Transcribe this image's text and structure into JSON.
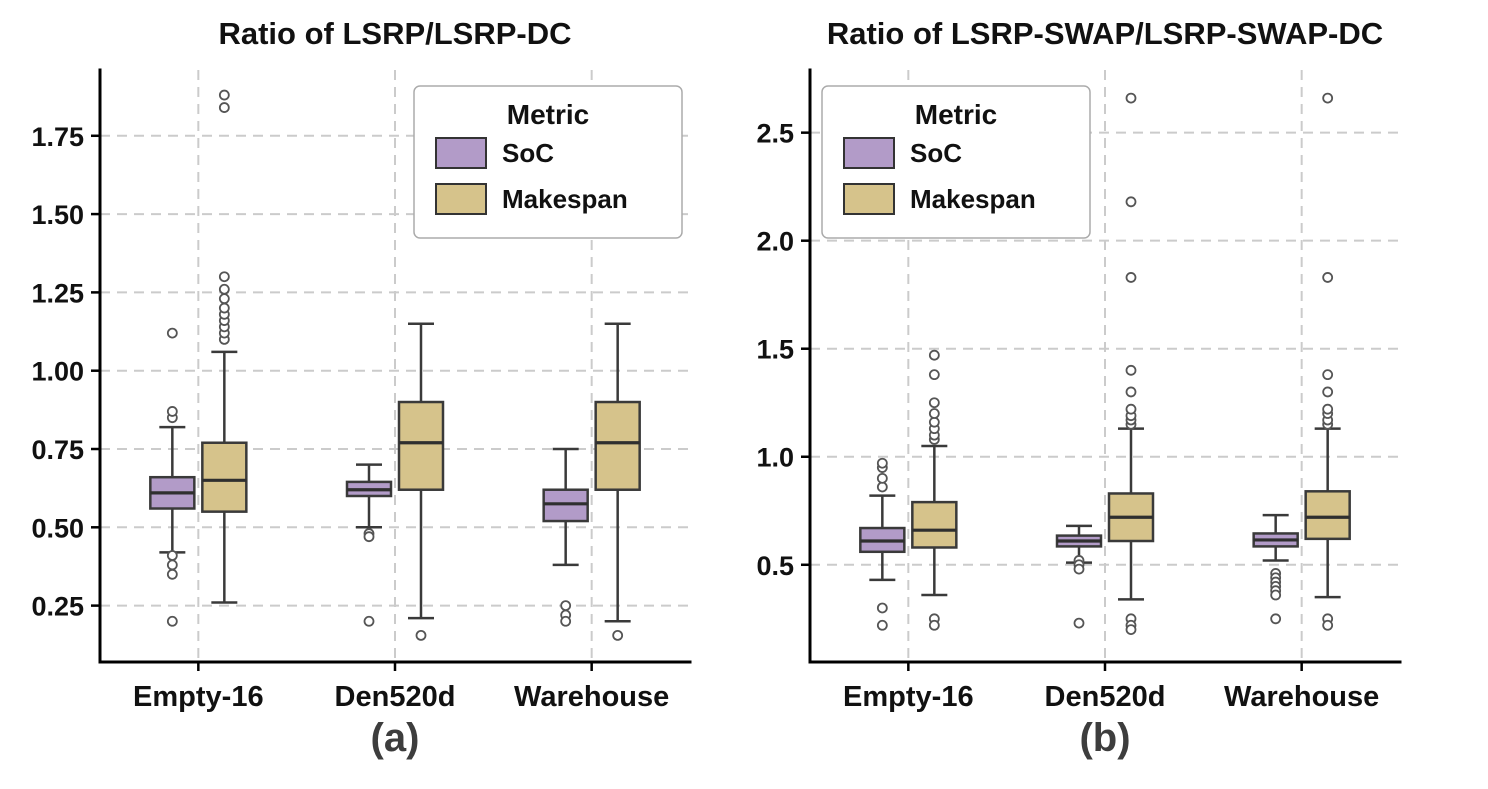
{
  "figure": {
    "background": "#ffffff",
    "edge_color": "#3a3a3a",
    "grid_color": "#cbcbcb",
    "outlier_style": "open-circle"
  },
  "chart_data": [
    {
      "type": "boxplot",
      "title": "Ratio of LSRP/LSRP-DC",
      "subplot_label": "(a)",
      "categories": [
        "Empty-16",
        "Den520d",
        "Warehouse"
      ],
      "ylim": [
        0.07,
        1.96
      ],
      "yticks": [
        0.25,
        0.5,
        0.75,
        1.0,
        1.25,
        1.5,
        1.75
      ],
      "ytick_labels": [
        "0.25",
        "0.50",
        "0.75",
        "1.00",
        "1.25",
        "1.50",
        "1.75"
      ],
      "grid": "both-dashed",
      "legend": {
        "title": "Metric",
        "loc": "upper right",
        "entries": [
          "SoC",
          "Makespan"
        ]
      },
      "series": [
        {
          "name": "SoC",
          "color": "#b29bc8",
          "boxes": [
            {
              "q1": 0.56,
              "median": 0.61,
              "q3": 0.66,
              "lo": 0.42,
              "hi": 0.82,
              "outliers": [
                0.85,
                0.87,
                1.12,
                0.41,
                0.38,
                0.35,
                0.2
              ]
            },
            {
              "q1": 0.6,
              "median": 0.62,
              "q3": 0.645,
              "lo": 0.5,
              "hi": 0.7,
              "outliers": [
                0.48,
                0.47,
                0.2
              ]
            },
            {
              "q1": 0.52,
              "median": 0.575,
              "q3": 0.62,
              "lo": 0.38,
              "hi": 0.75,
              "outliers": [
                0.25,
                0.22,
                0.2
              ]
            }
          ]
        },
        {
          "name": "Makespan",
          "color": "#d6c38b",
          "boxes": [
            {
              "q1": 0.55,
              "median": 0.65,
              "q3": 0.77,
              "lo": 0.26,
              "hi": 1.06,
              "outliers": [
                1.1,
                1.12,
                1.14,
                1.16,
                1.18,
                1.2,
                1.23,
                1.26,
                1.3,
                1.84,
                1.88
              ]
            },
            {
              "q1": 0.62,
              "median": 0.77,
              "q3": 0.9,
              "lo": 0.21,
              "hi": 1.15,
              "outliers": [
                0.155
              ]
            },
            {
              "q1": 0.62,
              "median": 0.77,
              "q3": 0.9,
              "lo": 0.2,
              "hi": 1.15,
              "outliers": [
                0.155
              ]
            }
          ]
        }
      ]
    },
    {
      "type": "boxplot",
      "title": "Ratio of LSRP-SWAP/LSRP-SWAP-DC",
      "subplot_label": "(b)",
      "categories": [
        "Empty-16",
        "Den520d",
        "Warehouse"
      ],
      "ylim": [
        0.05,
        2.79
      ],
      "yticks": [
        0.5,
        1.0,
        1.5,
        2.0,
        2.5
      ],
      "ytick_labels": [
        "0.5",
        "1.0",
        "1.5",
        "2.0",
        "2.5"
      ],
      "grid": "both-dashed",
      "legend": {
        "title": "Metric",
        "loc": "upper left",
        "entries": [
          "SoC",
          "Makespan"
        ]
      },
      "series": [
        {
          "name": "SoC",
          "color": "#b29bc8",
          "boxes": [
            {
              "q1": 0.56,
              "median": 0.61,
              "q3": 0.67,
              "lo": 0.43,
              "hi": 0.82,
              "outliers": [
                0.86,
                0.9,
                0.95,
                0.97,
                0.3,
                0.22
              ]
            },
            {
              "q1": 0.585,
              "median": 0.61,
              "q3": 0.635,
              "lo": 0.51,
              "hi": 0.68,
              "outliers": [
                0.52,
                0.5,
                0.48,
                0.23
              ]
            },
            {
              "q1": 0.585,
              "median": 0.615,
              "q3": 0.645,
              "lo": 0.52,
              "hi": 0.73,
              "outliers": [
                0.46,
                0.44,
                0.42,
                0.4,
                0.38,
                0.36,
                0.25
              ]
            }
          ]
        },
        {
          "name": "Makespan",
          "color": "#d6c38b",
          "boxes": [
            {
              "q1": 0.58,
              "median": 0.66,
              "q3": 0.79,
              "lo": 0.36,
              "hi": 1.05,
              "outliers": [
                1.08,
                1.1,
                1.13,
                1.16,
                1.2,
                1.25,
                1.38,
                1.47,
                0.25,
                0.22
              ]
            },
            {
              "q1": 0.61,
              "median": 0.72,
              "q3": 0.83,
              "lo": 0.34,
              "hi": 1.13,
              "outliers": [
                1.15,
                1.17,
                1.19,
                1.22,
                1.3,
                1.4,
                1.83,
                2.18,
                2.66,
                0.25,
                0.22,
                0.2
              ]
            },
            {
              "q1": 0.62,
              "median": 0.72,
              "q3": 0.84,
              "lo": 0.35,
              "hi": 1.13,
              "outliers": [
                1.15,
                1.17,
                1.2,
                1.22,
                1.3,
                1.38,
                1.83,
                2.66,
                0.25,
                0.22
              ]
            }
          ]
        }
      ]
    }
  ]
}
